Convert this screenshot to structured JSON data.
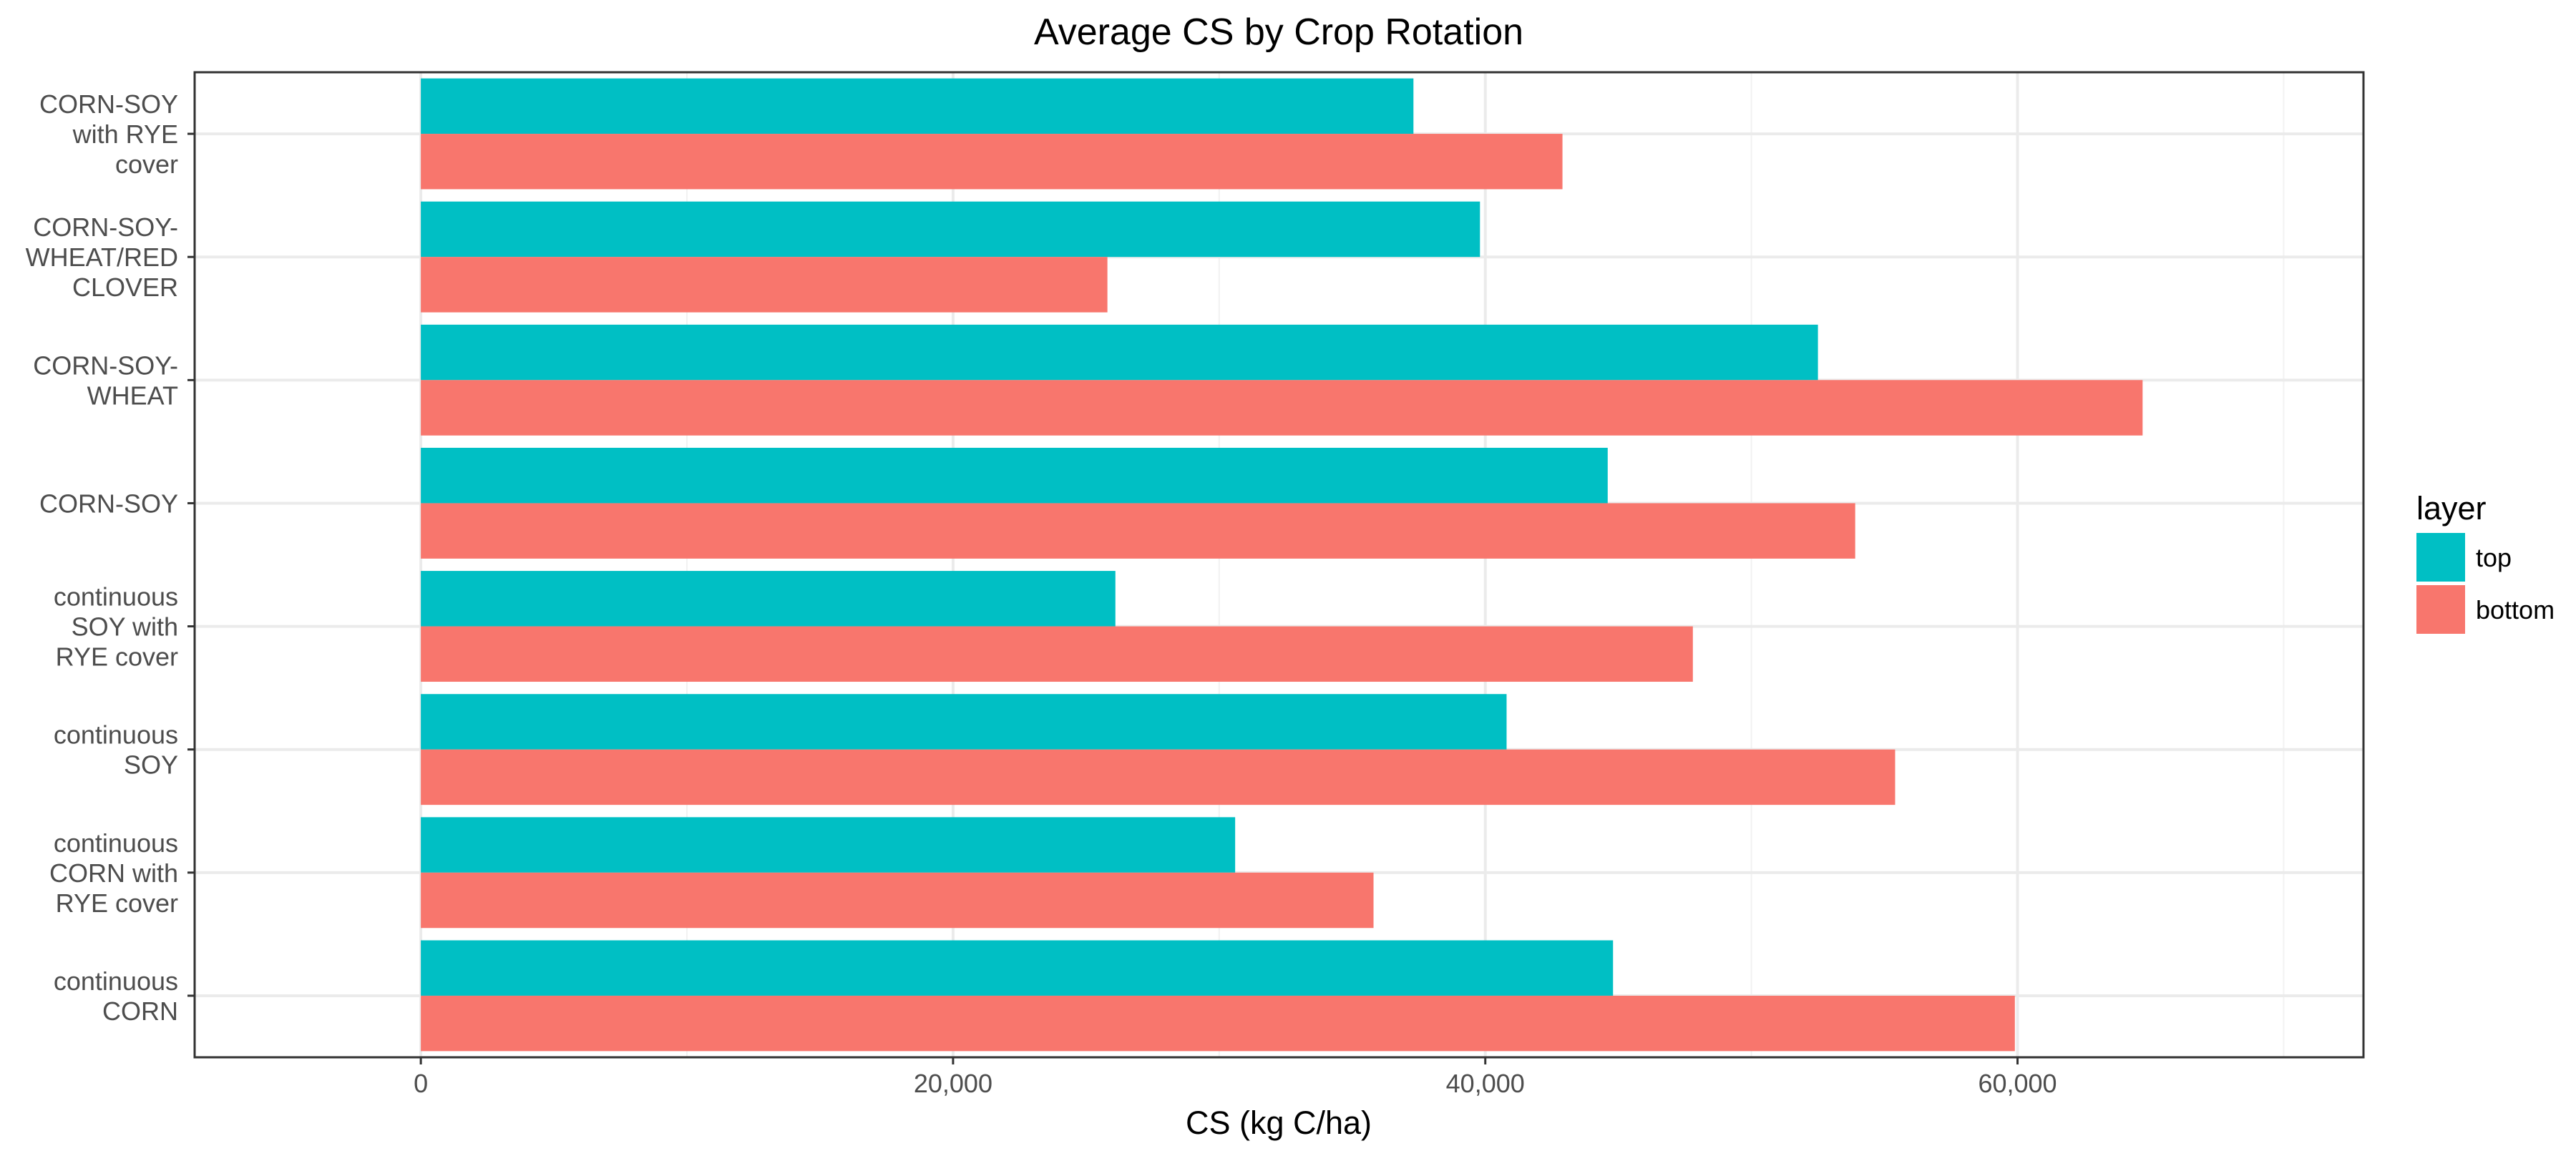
{
  "chart_data": {
    "type": "bar",
    "orientation": "horizontal",
    "title": "Average CS by Crop Rotation",
    "xlabel": "CS (kg C/ha)",
    "ylabel": "",
    "xlim": [
      -8500,
      73000
    ],
    "x_ticks": [
      0,
      20000,
      40000,
      60000
    ],
    "x_tick_labels": [
      "0",
      "20,000",
      "40,000",
      "60,000"
    ],
    "grid": true,
    "legend": {
      "title": "layer",
      "position": "right"
    },
    "categories": [
      {
        "lines": [
          "CORN-SOY",
          "with RYE",
          "cover"
        ]
      },
      {
        "lines": [
          "CORN-SOY-",
          "WHEAT/RED",
          "CLOVER"
        ]
      },
      {
        "lines": [
          "CORN-SOY-",
          "WHEAT"
        ]
      },
      {
        "lines": [
          "CORN-SOY"
        ]
      },
      {
        "lines": [
          "continuous",
          "SOY with",
          "RYE cover"
        ]
      },
      {
        "lines": [
          "continuous",
          "SOY"
        ]
      },
      {
        "lines": [
          "continuous",
          "CORN with",
          "RYE cover"
        ]
      },
      {
        "lines": [
          "continuous",
          "CORN"
        ]
      }
    ],
    "series": [
      {
        "name": "top",
        "color": "#00bfc4",
        "values": [
          37300,
          39800,
          52500,
          44600,
          26100,
          40800,
          30600,
          44800
        ]
      },
      {
        "name": "bottom",
        "color": "#f8766d",
        "values": [
          42900,
          25800,
          64700,
          53900,
          47800,
          55400,
          35800,
          59900
        ]
      }
    ]
  }
}
